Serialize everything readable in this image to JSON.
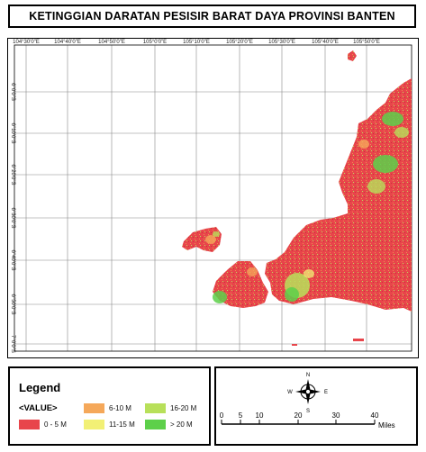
{
  "title": "KETINGGIAN DARATAN PESISIR BARAT DAYA PROVINSI BANTEN",
  "map": {
    "longitude_labels": [
      "104°30'0\"E",
      "104°40'0\"E",
      "104°50'0\"E",
      "105°0'0\"E",
      "105°10'0\"E",
      "105°20'0\"E",
      "105°30'0\"E",
      "105°40'0\"E",
      "105°50'0\"E"
    ],
    "latitude_labels": [
      "6°0'0\"S",
      "6°10'0\"S",
      "6°20'0\"S",
      "6°30'0\"S",
      "6°40'0\"S",
      "6°50'0\"S",
      "7°0'0\"S"
    ],
    "colors": {
      "class_0_5": "#e8454b",
      "class_6_10": "#f5a85a",
      "class_11_15": "#f2f075",
      "class_16_20": "#b8e05a",
      "class_gt_20": "#5dd04a"
    }
  },
  "legend": {
    "title": "Legend",
    "field": "<VALUE>",
    "items": [
      {
        "label": "0 - 5 M",
        "color": "#e8454b"
      },
      {
        "label": "6-10 M",
        "color": "#f5a85a"
      },
      {
        "label": "11-15 M",
        "color": "#f2f075"
      },
      {
        "label": "16-20 M",
        "color": "#b8e05a"
      },
      {
        "label": "> 20 M",
        "color": "#5dd04a"
      }
    ]
  },
  "scale": {
    "ticks": [
      "0",
      "5",
      "10",
      "20",
      "30",
      "40"
    ],
    "unit": "Miles",
    "compass": {
      "n": "N",
      "s": "S",
      "e": "E",
      "w": "W"
    }
  }
}
